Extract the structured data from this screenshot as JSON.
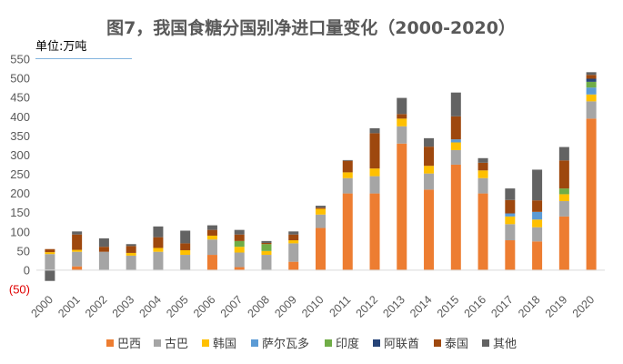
{
  "chart_data": {
    "type": "bar",
    "stacked": true,
    "title": "图7，我国食糖分国别净进口量变化（2000-2020）",
    "unit_label": "单位:万吨",
    "ylim": [
      -50,
      550
    ],
    "yticks": [
      -50,
      0,
      50,
      100,
      150,
      200,
      250,
      300,
      350,
      400,
      450,
      500,
      550
    ],
    "ytick_labels": [
      "(50)",
      "0",
      "50",
      "100",
      "150",
      "200",
      "250",
      "300",
      "350",
      "400",
      "450",
      "500",
      "550"
    ],
    "grid": false,
    "legend_position": "bottom",
    "categories": [
      "2000",
      "2001",
      "2002",
      "2003",
      "2004",
      "2005",
      "2006",
      "2007",
      "2008",
      "2009",
      "2010",
      "2011",
      "2012",
      "2013",
      "2014",
      "2015",
      "2016",
      "2017",
      "2018",
      "2019",
      "2020"
    ],
    "series": [
      {
        "name": "巴西",
        "color": "#ed7d31",
        "values": [
          0,
          10,
          0,
          0,
          0,
          0,
          40,
          8,
          0,
          22,
          110,
          200,
          200,
          330,
          210,
          275,
          200,
          78,
          75,
          140,
          395
        ]
      },
      {
        "name": "古巴",
        "color": "#a5a5a5",
        "values": [
          42,
          38,
          48,
          38,
          48,
          40,
          40,
          38,
          40,
          48,
          35,
          40,
          45,
          45,
          42,
          38,
          40,
          42,
          37,
          40,
          45
        ]
      },
      {
        "name": "韩国",
        "color": "#ffc000",
        "values": [
          5,
          5,
          0,
          7,
          10,
          12,
          10,
          15,
          10,
          8,
          15,
          15,
          20,
          20,
          20,
          20,
          20,
          20,
          20,
          18,
          18
        ]
      },
      {
        "name": "萨尔瓦多",
        "color": "#5b9bd5",
        "values": [
          0,
          0,
          0,
          0,
          0,
          0,
          0,
          0,
          0,
          0,
          0,
          0,
          0,
          0,
          0,
          8,
          0,
          8,
          20,
          0,
          18
        ]
      },
      {
        "name": "印度",
        "color": "#70ad47",
        "values": [
          0,
          0,
          0,
          0,
          0,
          0,
          0,
          15,
          18,
          0,
          0,
          0,
          0,
          0,
          0,
          0,
          0,
          0,
          0,
          15,
          15
        ]
      },
      {
        "name": "阿联酋",
        "color": "#264478",
        "values": [
          0,
          0,
          0,
          0,
          0,
          0,
          0,
          0,
          0,
          0,
          0,
          0,
          0,
          0,
          0,
          0,
          0,
          0,
          0,
          0,
          8
        ]
      },
      {
        "name": "泰国",
        "color": "#9e480e",
        "values": [
          8,
          40,
          13,
          18,
          28,
          18,
          15,
          17,
          3,
          15,
          3,
          30,
          92,
          12,
          50,
          60,
          20,
          35,
          30,
          73,
          10
        ]
      },
      {
        "name": "其他",
        "color": "#636363",
        "values": [
          -28,
          8,
          22,
          5,
          28,
          33,
          12,
          12,
          5,
          8,
          5,
          2,
          13,
          42,
          22,
          62,
          12,
          30,
          80,
          35,
          7
        ]
      }
    ]
  }
}
